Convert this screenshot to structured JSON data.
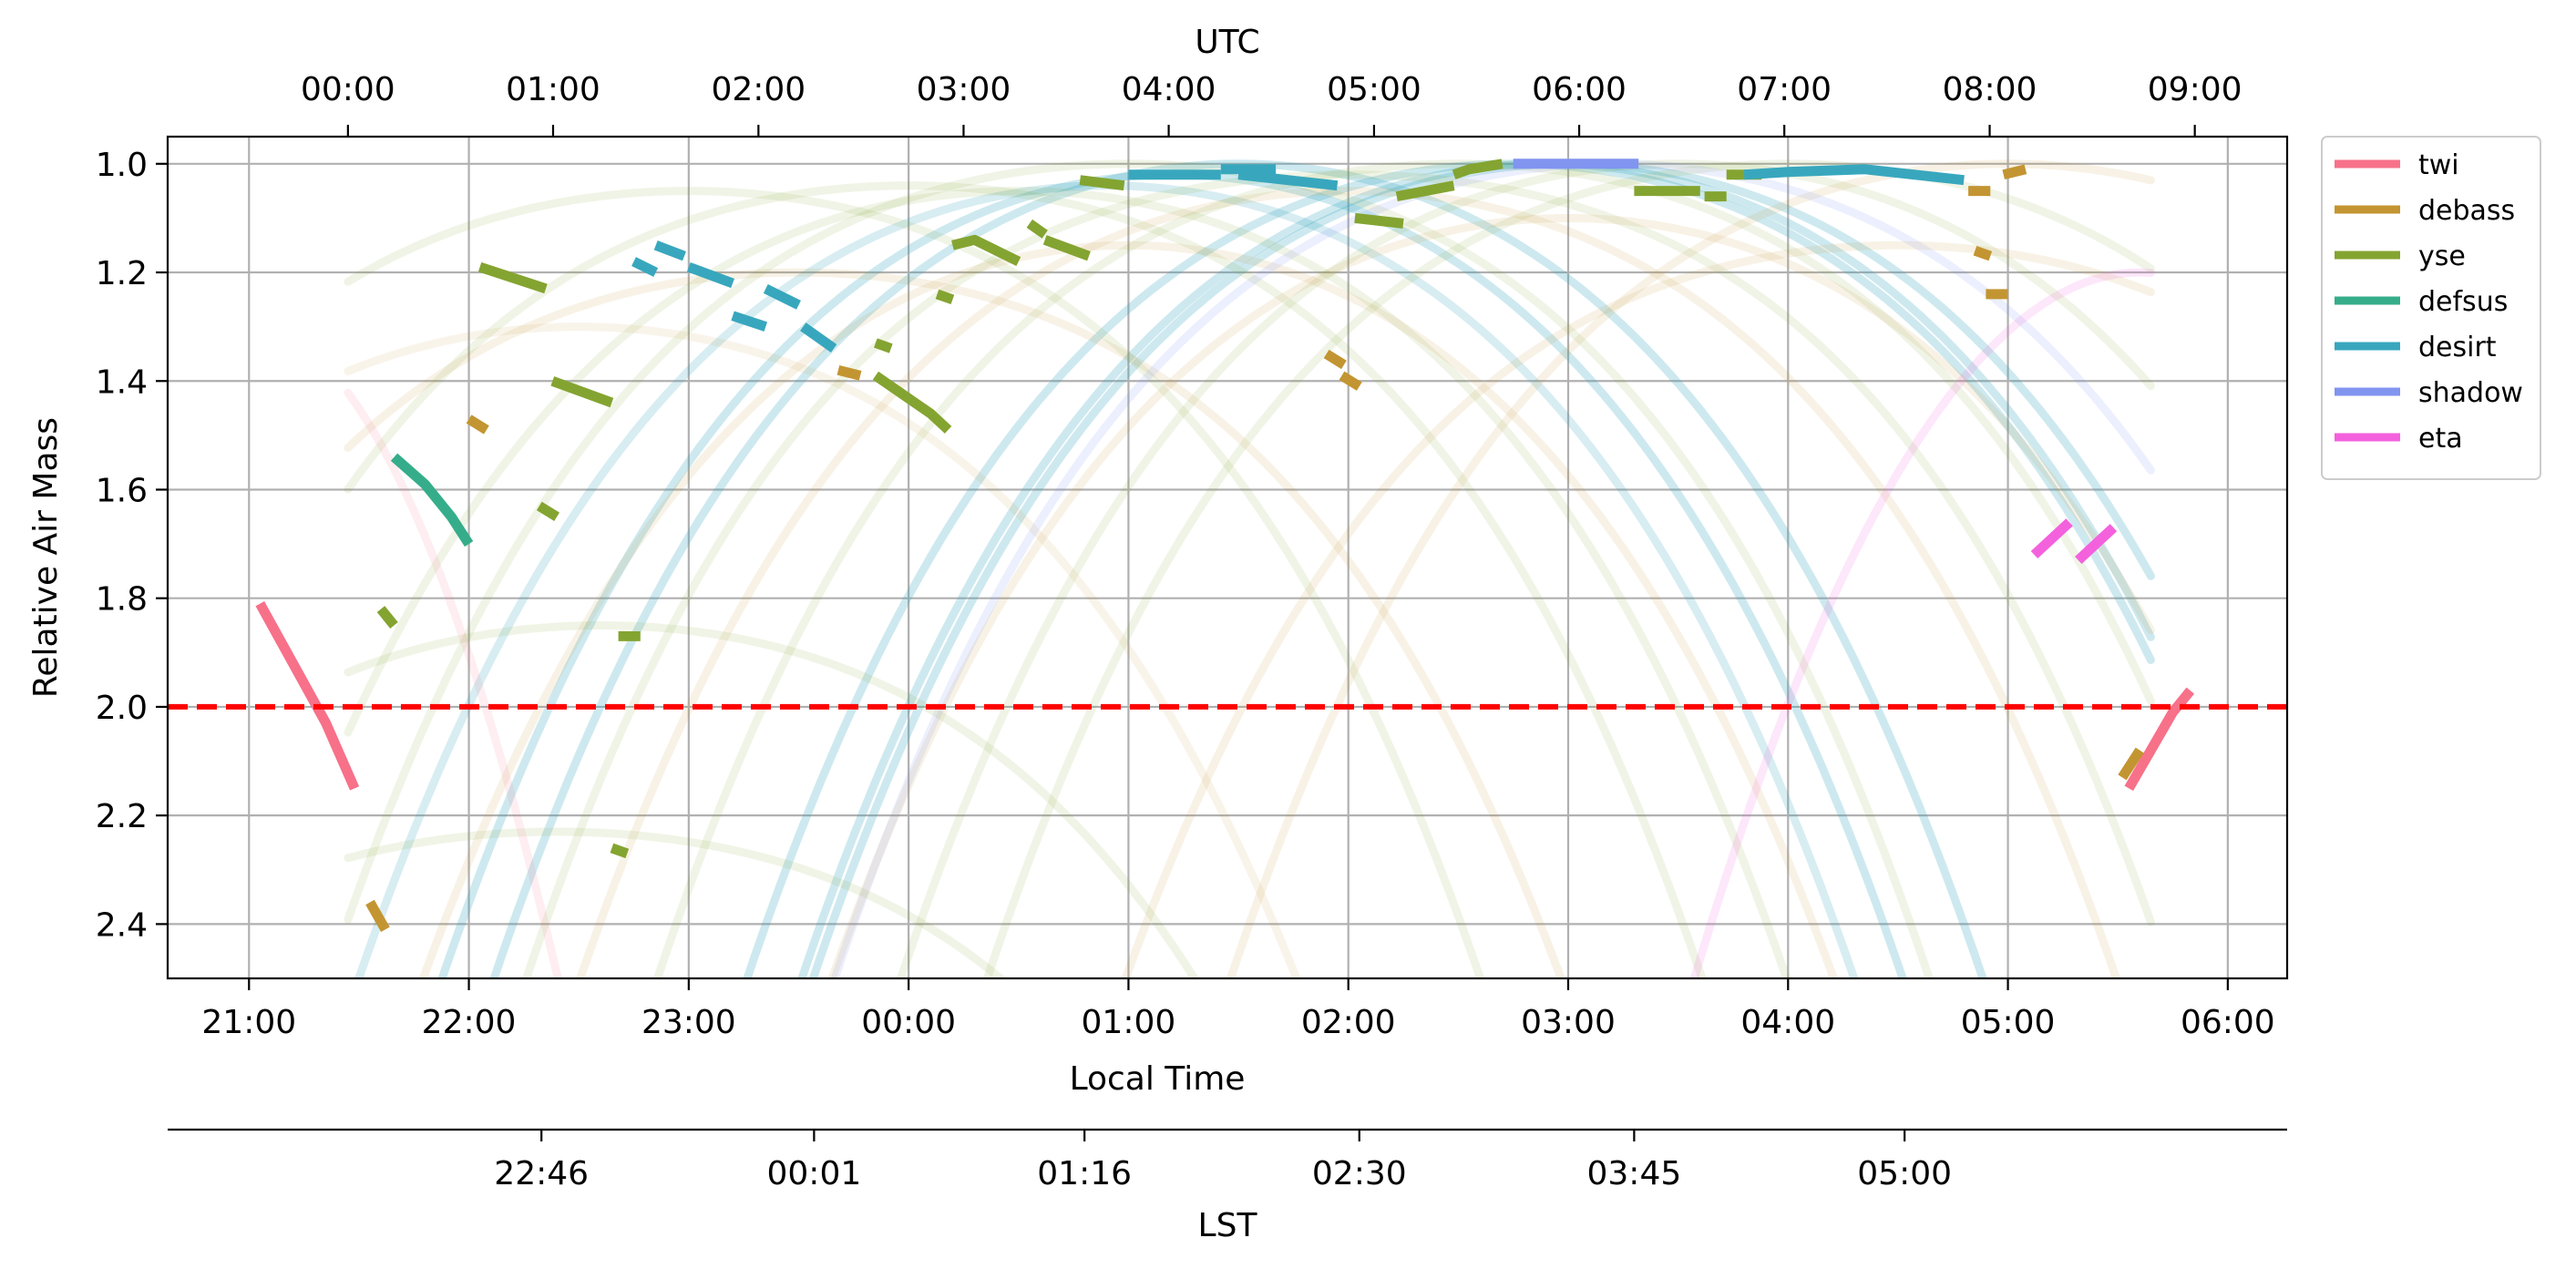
{
  "chart_data": {
    "type": "line",
    "title": "",
    "top_axis": {
      "label": "UTC",
      "ticks": [
        "00:00",
        "01:00",
        "02:00",
        "03:00",
        "04:00",
        "05:00",
        "06:00",
        "07:00",
        "08:00",
        "09:00"
      ],
      "tick_local_hours": [
        21.45,
        22.383,
        23.317,
        24.25,
        25.183,
        26.117,
        27.05,
        27.983,
        28.917,
        29.85
      ]
    },
    "xlabel": "Local Time",
    "x_ticks": [
      "21:00",
      "22:00",
      "23:00",
      "00:00",
      "01:00",
      "02:00",
      "03:00",
      "04:00",
      "05:00",
      "06:00"
    ],
    "x_tick_hours": [
      21,
      22,
      23,
      24,
      25,
      26,
      27,
      28,
      29,
      30
    ],
    "xlim_hours": [
      20.63,
      30.27
    ],
    "ylabel": "Relative Air Mass",
    "y_ticks": [
      "1.0",
      "1.2",
      "1.4",
      "1.6",
      "1.8",
      "2.0",
      "2.2",
      "2.4"
    ],
    "y_tick_values": [
      1.0,
      1.2,
      1.4,
      1.6,
      1.8,
      2.0,
      2.2,
      2.4
    ],
    "ylim": [
      2.5,
      0.95
    ],
    "y_inverted": true,
    "grid": true,
    "reference_line": {
      "y": 2.0,
      "color": "#ff0000",
      "style": "dashed"
    },
    "lst_axis": {
      "label": "LST",
      "ticks": [
        "22:46",
        "00:01",
        "01:16",
        "02:30",
        "03:45",
        "05:00"
      ],
      "tick_local_hours": [
        22.33,
        23.57,
        24.8,
        26.05,
        27.3,
        28.53
      ]
    },
    "legend": {
      "position": "outside-top-right"
    },
    "series": [
      {
        "name": "twi",
        "color": "#f77189",
        "segments": [
          [
            [
              21.05,
              1.81
            ],
            [
              21.2,
              1.92
            ],
            [
              21.35,
              2.03
            ],
            [
              21.48,
              2.15
            ]
          ],
          [
            [
              29.55,
              2.15
            ],
            [
              29.65,
              2.08
            ],
            [
              29.75,
              2.01
            ],
            [
              29.83,
              1.97
            ]
          ]
        ]
      },
      {
        "name": "debass",
        "color": "#c39532",
        "segments": [
          [
            [
              21.55,
              2.36
            ],
            [
              21.62,
              2.41
            ]
          ],
          [
            [
              22.0,
              1.47
            ],
            [
              22.08,
              1.49
            ]
          ],
          [
            [
              23.68,
              1.38
            ],
            [
              23.78,
              1.39
            ]
          ],
          [
            [
              25.9,
              1.35
            ],
            [
              25.98,
              1.37
            ]
          ],
          [
            [
              25.97,
              1.39
            ],
            [
              26.05,
              1.41
            ]
          ],
          [
            [
              28.82,
              1.05
            ],
            [
              28.92,
              1.05
            ]
          ],
          [
            [
              28.85,
              1.16
            ],
            [
              28.92,
              1.17
            ]
          ],
          [
            [
              28.9,
              1.24
            ],
            [
              29.0,
              1.24
            ]
          ],
          [
            [
              28.98,
              1.02
            ],
            [
              29.08,
              1.01
            ]
          ],
          [
            [
              29.52,
              2.13
            ],
            [
              29.6,
              2.08
            ]
          ]
        ]
      },
      {
        "name": "yse",
        "color": "#84a431",
        "segments": [
          [
            [
              21.6,
              1.82
            ],
            [
              21.66,
              1.85
            ]
          ],
          [
            [
              22.05,
              1.19
            ],
            [
              22.35,
              1.23
            ]
          ],
          [
            [
              22.32,
              1.63
            ],
            [
              22.4,
              1.65
            ]
          ],
          [
            [
              22.38,
              1.4
            ],
            [
              22.65,
              1.44
            ]
          ],
          [
            [
              22.68,
              1.87
            ],
            [
              22.78,
              1.87
            ]
          ],
          [
            [
              22.65,
              2.26
            ],
            [
              22.72,
              2.27
            ]
          ],
          [
            [
              23.85,
              1.33
            ],
            [
              23.92,
              1.34
            ]
          ],
          [
            [
              23.85,
              1.39
            ],
            [
              24.1,
              1.46
            ],
            [
              24.18,
              1.49
            ]
          ],
          [
            [
              24.13,
              1.24
            ],
            [
              24.2,
              1.25
            ]
          ],
          [
            [
              24.2,
              1.15
            ],
            [
              24.3,
              1.14
            ],
            [
              24.5,
              1.18
            ]
          ],
          [
            [
              24.55,
              1.11
            ],
            [
              24.62,
              1.13
            ]
          ],
          [
            [
              24.62,
              1.14
            ],
            [
              24.82,
              1.17
            ]
          ],
          [
            [
              24.78,
              1.03
            ],
            [
              24.98,
              1.04
            ]
          ],
          [
            [
              26.03,
              1.1
            ],
            [
              26.25,
              1.11
            ]
          ],
          [
            [
              26.22,
              1.06
            ],
            [
              26.48,
              1.04
            ]
          ],
          [
            [
              26.48,
              1.02
            ],
            [
              26.55,
              1.01
            ],
            [
              26.7,
              1.0
            ]
          ],
          [
            [
              27.3,
              1.05
            ],
            [
              27.6,
              1.05
            ]
          ],
          [
            [
              27.62,
              1.06
            ],
            [
              27.72,
              1.06
            ]
          ],
          [
            [
              27.72,
              1.02
            ],
            [
              27.88,
              1.02
            ]
          ]
        ]
      },
      {
        "name": "defsus",
        "color": "#36ad8a",
        "segments": [
          [
            [
              21.66,
              1.54
            ],
            [
              21.8,
              1.59
            ],
            [
              21.92,
              1.65
            ],
            [
              22.0,
              1.7
            ]
          ]
        ]
      },
      {
        "name": "desirt",
        "color": "#38a7be",
        "segments": [
          [
            [
              22.75,
              1.18
            ],
            [
              22.85,
              1.2
            ]
          ],
          [
            [
              22.85,
              1.15
            ],
            [
              22.98,
              1.17
            ]
          ],
          [
            [
              23.0,
              1.19
            ],
            [
              23.2,
              1.22
            ]
          ],
          [
            [
              23.2,
              1.28
            ],
            [
              23.35,
              1.3
            ]
          ],
          [
            [
              23.35,
              1.23
            ],
            [
              23.5,
              1.26
            ]
          ],
          [
            [
              23.52,
              1.3
            ],
            [
              23.66,
              1.34
            ]
          ],
          [
            [
              25.0,
              1.02
            ],
            [
              25.42,
              1.02
            ]
          ],
          [
            [
              25.42,
              1.01
            ],
            [
              25.67,
              1.01
            ]
          ],
          [
            [
              25.5,
              1.02
            ],
            [
              25.95,
              1.04
            ]
          ],
          [
            [
              27.8,
              1.02
            ],
            [
              28.0,
              1.015
            ],
            [
              28.35,
              1.01
            ],
            [
              28.8,
              1.03
            ]
          ]
        ]
      },
      {
        "name": "shadow",
        "color": "#8194f0",
        "segments": [
          [
            [
              26.75,
              1.0
            ],
            [
              27.0,
              1.0
            ],
            [
              27.32,
              1.0
            ]
          ]
        ]
      },
      {
        "name": "eta",
        "color": "#f461dd",
        "segments": [
          [
            [
              29.12,
              1.72
            ],
            [
              29.28,
              1.66
            ]
          ],
          [
            [
              29.32,
              1.73
            ],
            [
              29.48,
              1.67
            ]
          ]
        ]
      }
    ],
    "background_tracks_note": ""
  }
}
